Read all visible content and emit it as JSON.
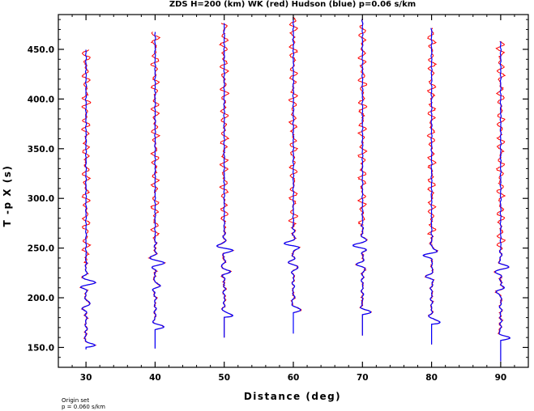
{
  "chart_data": {
    "type": "line",
    "title": "ZDS H=200 (km) WK (red) Hudson (blue) p=0.06 s/km",
    "xlabel": "Distance (deg)",
    "ylabel": "T -p X (s)",
    "xlim": [
      26,
      94
    ],
    "ylim": [
      130,
      485
    ],
    "x_ticks": [
      30,
      40,
      50,
      60,
      70,
      80,
      90
    ],
    "x_tick_labels": [
      "30",
      "40",
      "50",
      "60",
      "70",
      "80",
      "90"
    ],
    "y_ticks": [
      150,
      200,
      250,
      300,
      350,
      400,
      450
    ],
    "y_tick_labels": [
      "150.0",
      "200.0",
      "250.0",
      "300.0",
      "350.0",
      "400.0",
      "450.0"
    ],
    "grid": false,
    "series": [
      {
        "color_word": "red",
        "color": "#ff0000"
      },
      {
        "color_word": "blue",
        "color": "#0000ff"
      }
    ],
    "traces": [
      {
        "distance": 30,
        "start_time": 148,
        "end_time": 450,
        "first_arrival": 151,
        "arrivals": [
          151,
          192,
          215
        ]
      },
      {
        "distance": 40,
        "start_time": 149,
        "end_time": 468,
        "first_arrival": 169,
        "arrivals": [
          169,
          212,
          236
        ]
      },
      {
        "distance": 50,
        "start_time": 160,
        "end_time": 477,
        "first_arrival": 181,
        "arrivals": [
          181,
          227,
          250
        ]
      },
      {
        "distance": 60,
        "start_time": 164,
        "end_time": 483,
        "first_arrival": 186,
        "arrivals": [
          186,
          233,
          254
        ]
      },
      {
        "distance": 70,
        "start_time": 162,
        "end_time": 481,
        "first_arrival": 184,
        "arrivals": [
          184,
          232,
          253
        ]
      },
      {
        "distance": 80,
        "start_time": 153,
        "end_time": 472,
        "first_arrival": 174,
        "arrivals": [
          174,
          222,
          244
        ]
      },
      {
        "distance": 90,
        "start_time": 136,
        "end_time": 458,
        "first_arrival": 158,
        "arrivals": [
          158,
          207,
          229
        ]
      }
    ],
    "footnote": [
      "Origin set",
      "p = 0.060 s/km"
    ]
  }
}
